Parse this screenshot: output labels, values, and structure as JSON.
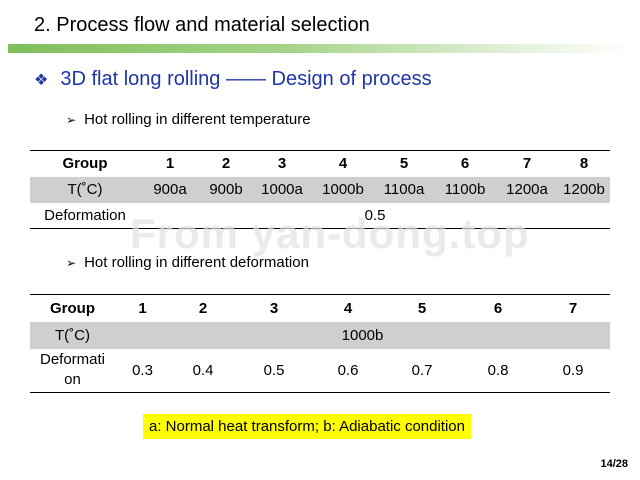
{
  "title": "2. Process flow and material selection",
  "subheading": "3D flat long rolling —— Design of process",
  "section1": {
    "bullet": "Hot rolling in different temperature",
    "header": [
      "Group",
      "1",
      "2",
      "3",
      "4",
      "5",
      "6",
      "7",
      "8"
    ],
    "temp_label": "T(˚C)",
    "temps": [
      "900a",
      "900b",
      "1000a",
      "1000b",
      "1100a",
      "1100b",
      "1200a",
      "1200b"
    ],
    "def_label": "Deformation",
    "def_value": "0.5"
  },
  "section2": {
    "bullet": "Hot rolling in different deformation",
    "header": [
      "Group",
      "1",
      "2",
      "3",
      "4",
      "5",
      "6",
      "7"
    ],
    "temp_label": "T(˚C)",
    "temp_value": "1000b",
    "def_label": "Deformati on",
    "defs": [
      "0.3",
      "0.4",
      "0.5",
      "0.6",
      "0.7",
      "0.8",
      "0.9"
    ]
  },
  "watermark": "From yan-dong.top",
  "note": "a: Normal heat transform; b: Adiabatic condition",
  "page_number": "14/28",
  "colors": {
    "heading_blue": "#1f35a8",
    "note_yellow": "#ffff00",
    "shade_gray": "#cfcfcf",
    "bar_green": "#7fbf5a"
  }
}
